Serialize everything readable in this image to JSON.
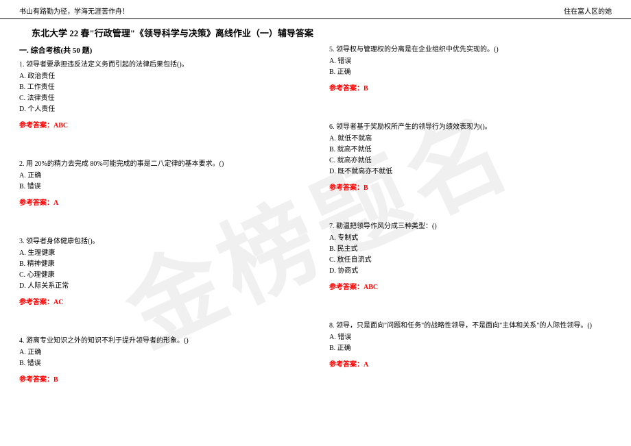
{
  "header": {
    "left": "书山有路勤为径，学海无涯苦作舟！",
    "right": "住在富人区的她"
  },
  "title": "东北大学 22 春\"行政管理\"《领导科学与决策》离线作业（一）辅导答案",
  "section": "一. 综合考核(共 50 题)",
  "watermark": "金榜题名",
  "answer_label": "参考答案：",
  "left_questions": [
    {
      "stem": "1. 领导者要承担违反法定义务而引起的法律后果包括()。",
      "options": [
        "A. 政治责任",
        "B. 工作责任",
        "C. 法律责任",
        "D. 个人责任"
      ],
      "answer": "ABC"
    },
    {
      "stem": "2. 用 20%的精力去完成 80%可能完成的事是二八定律的基本要求。()",
      "options": [
        "A. 正确",
        "B. 错误"
      ],
      "answer": "A"
    },
    {
      "stem": "3. 领导者身体健康包括()。",
      "options": [
        "A. 生理健康",
        "B. 精神健康",
        "C. 心理健康",
        "D. 人际关系正常"
      ],
      "answer": "AC"
    },
    {
      "stem": "4. 游离专业知识之外的知识不利于提升领导者的形象。()",
      "options": [
        "A. 正确",
        "B. 错误"
      ],
      "answer": "B"
    }
  ],
  "right_questions": [
    {
      "stem": "5. 领导权与管理权的分离是在企业组织中优先实现的。()",
      "options": [
        "A. 错误",
        "B. 正确"
      ],
      "answer": "B"
    },
    {
      "stem": "6. 领导者基于奖励权所产生的领导行为绩效表现为()。",
      "options": [
        "A. 就低不就高",
        "B. 就高不就低",
        "C. 就高亦就低",
        "D. 既不就高亦不就低"
      ],
      "answer": "B"
    },
    {
      "stem": "7. 勒温把领导作风分成三种类型：()",
      "options": [
        "A. 专制式",
        "B. 民主式",
        "C. 放任自流式",
        "D. 协商式"
      ],
      "answer": "ABC"
    },
    {
      "stem": "8. 领导，只是面向\"问题和任务\"的战略性领导，不是面向\"主体和关系\"的人际性领导。()",
      "options": [
        "A. 错误",
        "B. 正确"
      ],
      "answer": "A"
    }
  ]
}
